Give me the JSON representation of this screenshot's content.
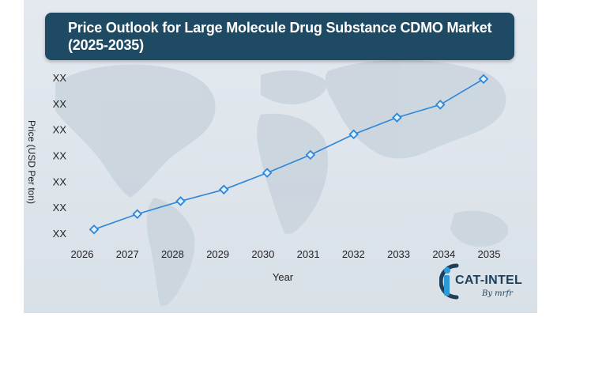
{
  "title": "Price Outlook for Large Molecule Drug Substance CDMO Market (2025-2035)",
  "brand": {
    "name": "CAT-INTEL",
    "sub": "By mrfr"
  },
  "colors": {
    "title_bg": "#1f4a63",
    "line": "#2f86d6",
    "marker_fill": "#dff0ff",
    "marker_stroke": "#2f86d6"
  },
  "chart_data": {
    "type": "line",
    "xlabel": "Year",
    "ylabel": "Price (USD Per ton)",
    "x": [
      "2026",
      "2027",
      "2028",
      "2029",
      "2030",
      "2031",
      "2032",
      "2033",
      "2034",
      "2035"
    ],
    "ytick_labels": [
      "XX",
      "XX",
      "XX",
      "XX",
      "XX",
      "XX",
      "XX"
    ],
    "series": [
      {
        "values": [
          1.0,
          1.6,
          2.1,
          2.55,
          3.2,
          3.9,
          4.7,
          5.35,
          5.85,
          6.85
        ]
      }
    ],
    "ylim": [
      0.7,
      7.0
    ],
    "grid": false,
    "legend": "none"
  }
}
